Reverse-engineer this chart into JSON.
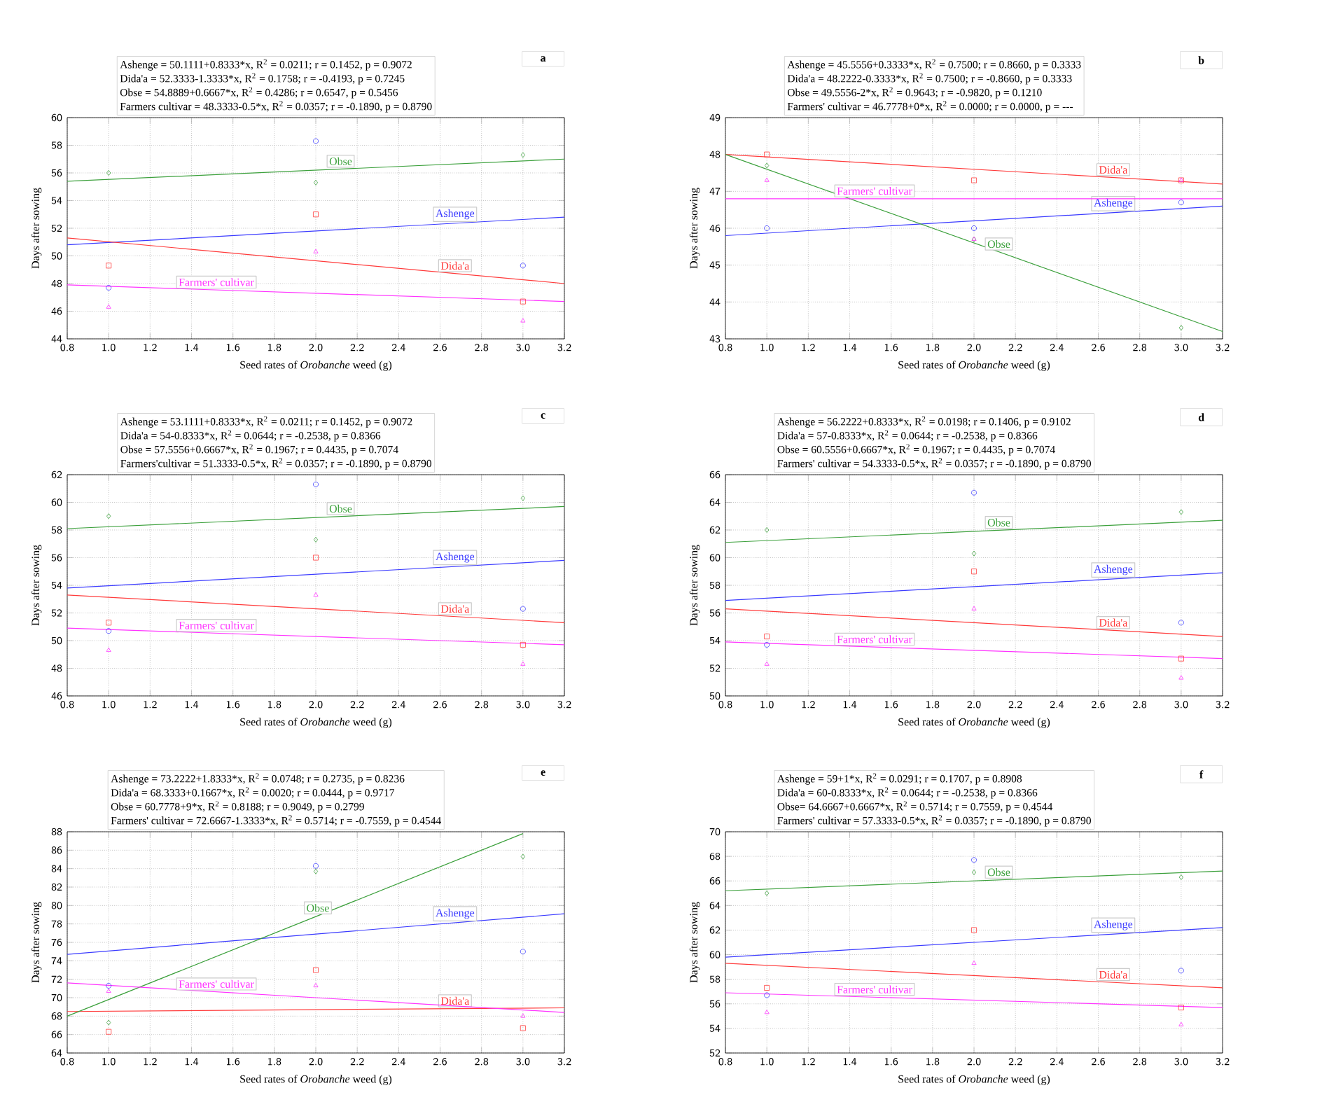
{
  "chart_data": [
    {
      "type": "scatter",
      "title": "a",
      "xlabel": "Seed rates of *Orobanche* weed (g)",
      "ylabel": "Days after sowing",
      "grid": true,
      "xlim": [
        0.8,
        3.2
      ],
      "xticks": [
        0.8,
        {
          "value": 1,
          "label": "1.0"
        },
        1.2,
        1.4,
        1.6,
        1.8,
        {
          "value": 2,
          "label": "2.0"
        },
        2.2,
        2.4,
        2.6,
        2.8,
        {
          "value": 3,
          "label": "3.0"
        },
        3.2
      ],
      "ylim": [
        44,
        60
      ],
      "yticks": [
        44,
        46,
        48,
        50,
        52,
        54,
        56,
        58,
        60
      ],
      "annotations": [
        "Ashenge = 50.1111+0.8333*x, R$^{2}$ = 0.0211; r = 0.1452, p = 0.9072",
        "Dida'a = 52.3333-1.3333*x, R$^{2}$ = 0.1758; r = -0.4193, p = 0.7245",
        "Obse = 54.8889+0.6667*x, R$^{2}$ = 0.4286; r = 0.6547, p = 0.5456",
        "Farmers cultivar = 48.3333-0.5*x, R$^{2}$ = 0.0357; r = -0.1890, p = 0.8790"
      ],
      "series": [
        {
          "marker": "circle",
          "color": "#3b3bff",
          "x": [
            1,
            2,
            3
          ],
          "values": [
            47.7,
            58.3,
            49.3
          ]
        },
        {
          "marker": "square",
          "color": "#ff3b3b",
          "x": [
            1,
            2,
            3
          ],
          "values": [
            49.3,
            53.0,
            46.7
          ]
        },
        {
          "marker": "diamond",
          "color": "#3ca03c",
          "x": [
            1,
            2,
            3
          ],
          "values": [
            56.0,
            55.3,
            57.3
          ]
        },
        {
          "marker": "triangle",
          "color": "#ff33ff",
          "x": [
            1,
            2,
            3
          ],
          "values": [
            46.3,
            50.3,
            45.3
          ]
        },
        {
          "type": "line",
          "name": "Ashenge",
          "color": "#3b3bff",
          "x": [
            0.8,
            3.2
          ],
          "values": [
            50.8,
            52.8
          ]
        },
        {
          "type": "line",
          "name": "Dida'a",
          "color": "#ff3b3b",
          "x": [
            0.8,
            3.2
          ],
          "values": [
            51.3,
            48.0
          ]
        },
        {
          "type": "line",
          "name": "Obse",
          "color": "#3ca03c",
          "x": [
            0.8,
            3.2
          ],
          "values": [
            55.4,
            57.0
          ]
        },
        {
          "type": "line",
          "name": "Farmers' cultivar",
          "color": "#ff33ff",
          "x": [
            0.8,
            3.2
          ],
          "values": [
            47.9,
            46.7
          ]
        }
      ]
    },
    {
      "type": "scatter",
      "title": "b",
      "xlabel": "Seed rates of *Orobanche* weed (g)",
      "ylabel": "Days after sowing",
      "grid": true,
      "xlim": [
        0.8,
        3.2
      ],
      "xticks": [
        0.8,
        {
          "value": 1,
          "label": "1.0"
        },
        1.2,
        1.4,
        1.6,
        1.8,
        {
          "value": 2,
          "label": "2.0"
        },
        2.2,
        2.4,
        2.6,
        2.8,
        {
          "value": 3,
          "label": "3.0"
        },
        3.2
      ],
      "ylim": [
        43,
        49
      ],
      "yticks": [
        43,
        44,
        45,
        46,
        47,
        48,
        49
      ],
      "annotations": [
        "Ashenge = 45.5556+0.3333*x, R$^{2}$ = 0.7500; r = 0.8660, p = 0.3333",
        "Dida'a = 48.2222-0.3333*x, R$^{2}$ = 0.7500; r = -0.8660, p = 0.3333",
        "Obse = 49.5556-2*x, R$^{2}$ = 0.9643; r = -0.9820, p = 0.1210",
        "Farmers' cultivar = 46.7778+0*x, R$^{2}$ = 0.0000; r = 0.0000, p = ---"
      ],
      "series": [
        {
          "marker": "circle",
          "color": "#3b3bff",
          "x": [
            1,
            2,
            3
          ],
          "values": [
            46.0,
            46.0,
            46.7
          ]
        },
        {
          "marker": "square",
          "color": "#ff3b3b",
          "x": [
            1,
            2,
            3
          ],
          "values": [
            48.0,
            47.3,
            47.3
          ]
        },
        {
          "marker": "diamond",
          "color": "#3ca03c",
          "x": [
            1,
            2,
            3
          ],
          "values": [
            47.7,
            45.7,
            43.3
          ]
        },
        {
          "marker": "triangle",
          "color": "#ff33ff",
          "x": [
            1,
            2,
            3
          ],
          "values": [
            47.3,
            45.7,
            47.3
          ]
        },
        {
          "type": "line",
          "name": "Ashenge",
          "color": "#3b3bff",
          "x": [
            0.8,
            3.2
          ],
          "values": [
            45.8,
            46.6
          ]
        },
        {
          "type": "line",
          "name": "Dida'a",
          "color": "#ff3b3b",
          "x": [
            0.8,
            3.2
          ],
          "values": [
            48.0,
            47.2
          ]
        },
        {
          "type": "line",
          "name": "Obse",
          "color": "#3ca03c",
          "x": [
            0.8,
            3.2
          ],
          "values": [
            48.0,
            43.2
          ]
        },
        {
          "type": "line",
          "name": "Farmers' cultivar",
          "color": "#ff33ff",
          "x": [
            0.8,
            3.2
          ],
          "values": [
            46.8,
            46.8
          ]
        }
      ]
    },
    {
      "type": "scatter",
      "title": "c",
      "xlabel": "Seed rates of *Orobanche* weed (g)",
      "ylabel": "Days after sowing",
      "grid": true,
      "xlim": [
        0.8,
        3.2
      ],
      "xticks": [
        0.8,
        {
          "value": 1,
          "label": "1.0"
        },
        1.2,
        1.4,
        1.6,
        1.8,
        {
          "value": 2,
          "label": "2.0"
        },
        2.2,
        2.4,
        2.6,
        2.8,
        {
          "value": 3,
          "label": "3.0"
        },
        3.2
      ],
      "ylim": [
        46,
        62
      ],
      "yticks": [
        46,
        48,
        50,
        52,
        54,
        56,
        58,
        60,
        62
      ],
      "annotations": [
        "Ashenge = 53.1111+0.8333*x, R$^{2}$ = 0.0211; r = 0.1452, p = 0.9072",
        "Dida'a = 54-0.8333*x, R$^{2}$ = 0.0644; r = -0.2538, p = 0.8366",
        "Obse = 57.5556+0.6667*x, R$^{2}$ = 0.1967; r = 0.4435, p = 0.7074",
        "Farmers'cultivar = 51.3333-0.5*x, R$^{2}$ = 0.0357; r = -0.1890, p = 0.8790"
      ],
      "series": [
        {
          "marker": "circle",
          "color": "#3b3bff",
          "x": [
            1,
            2,
            3
          ],
          "values": [
            50.7,
            61.3,
            52.3
          ]
        },
        {
          "marker": "square",
          "color": "#ff3b3b",
          "x": [
            1,
            2,
            3
          ],
          "values": [
            51.3,
            56.0,
            49.7
          ]
        },
        {
          "marker": "diamond",
          "color": "#3ca03c",
          "x": [
            1,
            2,
            3
          ],
          "values": [
            59.0,
            57.3,
            60.3
          ]
        },
        {
          "marker": "triangle",
          "color": "#ff33ff",
          "x": [
            1,
            2,
            3
          ],
          "values": [
            49.3,
            53.3,
            48.3
          ]
        },
        {
          "type": "line",
          "name": "Ashenge",
          "color": "#3b3bff",
          "x": [
            0.8,
            3.2
          ],
          "values": [
            53.8,
            55.8
          ]
        },
        {
          "type": "line",
          "name": "Dida'a",
          "color": "#ff3b3b",
          "x": [
            0.8,
            3.2
          ],
          "values": [
            53.3,
            51.3
          ]
        },
        {
          "type": "line",
          "name": "Obse",
          "color": "#3ca03c",
          "x": [
            0.8,
            3.2
          ],
          "values": [
            58.1,
            59.7
          ]
        },
        {
          "type": "line",
          "name": "Farmers' cultivar",
          "color": "#ff33ff",
          "x": [
            0.8,
            3.2
          ],
          "values": [
            50.9,
            49.7
          ]
        }
      ]
    },
    {
      "type": "scatter",
      "title": "d",
      "xlabel": "Seed rates of *Orobanche* weed (g)",
      "ylabel": "Days after sowing",
      "grid": true,
      "xlim": [
        0.8,
        3.2
      ],
      "xticks": [
        0.8,
        {
          "value": 1,
          "label": "1.0"
        },
        1.2,
        1.4,
        1.6,
        1.8,
        {
          "value": 2,
          "label": "2.0"
        },
        2.2,
        2.4,
        2.6,
        2.8,
        {
          "value": 3,
          "label": "3.0"
        },
        3.2
      ],
      "ylim": [
        50,
        66
      ],
      "yticks": [
        50,
        52,
        54,
        56,
        58,
        60,
        62,
        64,
        66
      ],
      "annotations": [
        "Ashenge = 56.2222+0.8333*x, R$^{2}$ = 0.0198; r = 0.1406, p = 0.9102",
        "Dida'a = 57-0.8333*x, R$^{2}$ = 0.0644; r = -0.2538, p = 0.8366",
        "Obse = 60.5556+0.6667*x, R$^{2}$ = 0.1967; r = 0.4435, p = 0.7074",
        "Farmers' cultivar = 54.3333-0.5*x, R$^{2}$ = 0.0357; r = -0.1890, p = 0.8790"
      ],
      "series": [
        {
          "marker": "circle",
          "color": "#3b3bff",
          "x": [
            1,
            2,
            3
          ],
          "values": [
            53.7,
            64.7,
            55.3
          ]
        },
        {
          "marker": "square",
          "color": "#ff3b3b",
          "x": [
            1,
            2,
            3
          ],
          "values": [
            54.3,
            59.0,
            52.7
          ]
        },
        {
          "marker": "diamond",
          "color": "#3ca03c",
          "x": [
            1,
            2,
            3
          ],
          "values": [
            62.0,
            60.3,
            63.3
          ]
        },
        {
          "marker": "triangle",
          "color": "#ff33ff",
          "x": [
            1,
            2,
            3
          ],
          "values": [
            52.3,
            56.3,
            51.3
          ]
        },
        {
          "type": "line",
          "name": "Ashenge",
          "color": "#3b3bff",
          "x": [
            0.8,
            3.2
          ],
          "values": [
            56.9,
            58.9
          ]
        },
        {
          "type": "line",
          "name": "Dida'a",
          "color": "#ff3b3b",
          "x": [
            0.8,
            3.2
          ],
          "values": [
            56.3,
            54.3
          ]
        },
        {
          "type": "line",
          "name": "Obse",
          "color": "#3ca03c",
          "x": [
            0.8,
            3.2
          ],
          "values": [
            61.1,
            62.7
          ]
        },
        {
          "type": "line",
          "name": "Farmers' cultivar",
          "color": "#ff33ff",
          "x": [
            0.8,
            3.2
          ],
          "values": [
            53.9,
            52.7
          ]
        }
      ]
    },
    {
      "type": "scatter",
      "title": "e",
      "xlabel": "Seed rates of *Orobanche* weed (g)",
      "ylabel": "Days after sowing",
      "grid": true,
      "xlim": [
        0.8,
        3.2
      ],
      "xticks": [
        0.8,
        {
          "value": 1,
          "label": "1.0"
        },
        1.2,
        1.4,
        1.6,
        1.8,
        {
          "value": 2,
          "label": "2.0"
        },
        2.2,
        2.4,
        2.6,
        2.8,
        {
          "value": 3,
          "label": "3.0"
        },
        3.2
      ],
      "ylim": [
        64,
        88
      ],
      "yticks": [
        64,
        66,
        68,
        70,
        72,
        74,
        76,
        78,
        80,
        82,
        84,
        86,
        88
      ],
      "annotations": [
        "Ashenge = 73.2222+1.8333*x, R$^{2}$ = 0.0748; r = 0.2735, p = 0.8236",
        "Dida'a = 68.3333+0.1667*x, R$^{2}$ = 0.0020; r = 0.0444, p = 0.9717",
        "Obse = 60.7778+9*x, R$^{2}$ = 0.8188; r = 0.9049, p = 0.2799",
        "Farmers' cultivar = 72.6667-1.3333*x, R$^{2}$ = 0.5714; r = -0.7559, p = 0.4544"
      ],
      "series": [
        {
          "marker": "circle",
          "color": "#3b3bff",
          "x": [
            1,
            2,
            3
          ],
          "values": [
            71.3,
            84.3,
            75.0
          ]
        },
        {
          "marker": "square",
          "color": "#ff3b3b",
          "x": [
            1,
            2,
            3
          ],
          "values": [
            66.3,
            73.0,
            66.7
          ]
        },
        {
          "marker": "diamond",
          "color": "#3ca03c",
          "x": [
            1,
            2,
            3
          ],
          "values": [
            67.3,
            83.7,
            85.3
          ]
        },
        {
          "marker": "triangle",
          "color": "#ff33ff",
          "x": [
            1,
            2,
            3
          ],
          "values": [
            70.7,
            71.3,
            68.0
          ]
        },
        {
          "type": "line",
          "name": "Ashenge",
          "color": "#3b3bff",
          "x": [
            0.8,
            3.2
          ],
          "values": [
            74.7,
            79.1
          ]
        },
        {
          "type": "line",
          "name": "Dida'a",
          "color": "#ff3b3b",
          "x": [
            0.8,
            3.2
          ],
          "values": [
            68.5,
            68.9
          ]
        },
        {
          "type": "line",
          "name": "Obse",
          "color": "#3ca03c",
          "x": [
            0.8,
            3.0
          ],
          "values": [
            68.0,
            87.8
          ]
        },
        {
          "type": "line",
          "name": "Farmers' cultivar",
          "color": "#ff33ff",
          "x": [
            0.8,
            3.2
          ],
          "values": [
            71.6,
            68.4
          ]
        }
      ]
    },
    {
      "type": "scatter",
      "title": "f",
      "xlabel": "Seed rates of *Orobanche* weed (g)",
      "ylabel": "Days after sowing",
      "grid": true,
      "xlim": [
        0.8,
        3.2
      ],
      "xticks": [
        0.8,
        {
          "value": 1,
          "label": "1.0"
        },
        1.2,
        1.4,
        1.6,
        1.8,
        {
          "value": 2,
          "label": "2.0"
        },
        2.2,
        2.4,
        2.6,
        2.8,
        {
          "value": 3,
          "label": "3.0"
        },
        3.2
      ],
      "ylim": [
        52,
        70
      ],
      "yticks": [
        52,
        54,
        56,
        58,
        60,
        62,
        64,
        66,
        68,
        70
      ],
      "annotations": [
        "Ashenge = 59+1*x, R$^{2}$ = 0.0291; r = 0.1707, p = 0.8908",
        "Dida'a = 60-0.8333*x, R$^{2}$ = 0.0644; r = -0.2538, p = 0.8366",
        "Obse= 64.6667+0.6667*x, R$^{2}$ = 0.5714; r = 0.7559, p = 0.4544",
        "Farmers' cultivar = 57.3333-0.5*x, R$^{2}$ = 0.0357; r = -0.1890, p = 0.8790"
      ],
      "series": [
        {
          "marker": "circle",
          "color": "#3b3bff",
          "x": [
            1,
            2,
            3
          ],
          "values": [
            56.7,
            67.7,
            58.7
          ]
        },
        {
          "marker": "square",
          "color": "#ff3b3b",
          "x": [
            1,
            2,
            3
          ],
          "values": [
            57.3,
            62.0,
            55.7
          ]
        },
        {
          "marker": "diamond",
          "color": "#3ca03c",
          "x": [
            1,
            2,
            3
          ],
          "values": [
            65.0,
            66.7,
            66.3
          ]
        },
        {
          "marker": "triangle",
          "color": "#ff33ff",
          "x": [
            1,
            2,
            3
          ],
          "values": [
            55.3,
            59.3,
            54.3
          ]
        },
        {
          "type": "line",
          "name": "Ashenge",
          "color": "#3b3bff",
          "x": [
            0.8,
            3.2
          ],
          "values": [
            59.8,
            62.2
          ]
        },
        {
          "type": "line",
          "name": "Dida'a",
          "color": "#ff3b3b",
          "x": [
            0.8,
            3.2
          ],
          "values": [
            59.3,
            57.3
          ]
        },
        {
          "type": "line",
          "name": "Obse",
          "color": "#3ca03c",
          "x": [
            0.8,
            3.2
          ],
          "values": [
            65.2,
            66.8
          ]
        },
        {
          "type": "line",
          "name": "Farmers' cultivar",
          "color": "#ff33ff",
          "x": [
            0.8,
            3.2
          ],
          "values": [
            56.9,
            55.7
          ]
        }
      ]
    }
  ]
}
